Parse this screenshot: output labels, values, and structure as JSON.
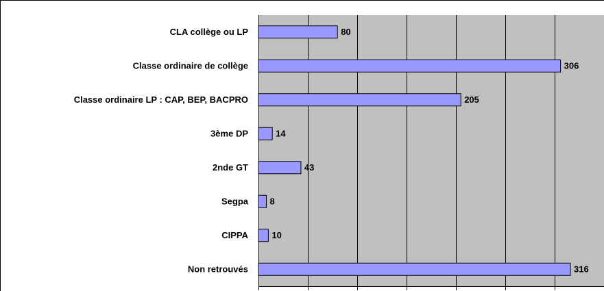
{
  "chart_data": {
    "type": "bar",
    "orientation": "horizontal",
    "categories": [
      "CLA collège ou LP",
      "Classe ordinaire de collège",
      "Classe ordinaire LP : CAP, BEP, BACPRO",
      "3ème DP",
      "2nde GT",
      "Segpa",
      "CIPPA",
      "Non retrouvés"
    ],
    "values": [
      80,
      306,
      205,
      14,
      43,
      8,
      10,
      316
    ],
    "color": "#9999ff",
    "xlim": [
      0,
      350
    ],
    "xticks": [
      0,
      50,
      100,
      150,
      200,
      250,
      300,
      350
    ],
    "grid": true
  }
}
